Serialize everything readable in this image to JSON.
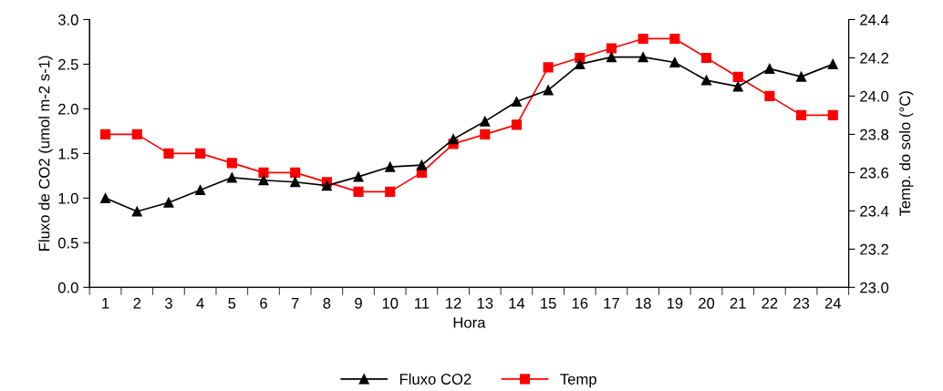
{
  "chart_data": {
    "type": "line",
    "xlabel": "Hora",
    "ylabel": "Fluxo de CO2 (umol m-2 s-1)",
    "y2label": "Temp. do solo (°C)",
    "categories": [
      "1",
      "2",
      "3",
      "4",
      "5",
      "6",
      "7",
      "8",
      "9",
      "10",
      "11",
      "12",
      "13",
      "14",
      "15",
      "16",
      "17",
      "18",
      "19",
      "20",
      "21",
      "22",
      "23",
      "24"
    ],
    "series": [
      {
        "name": "Fluxo CO2",
        "color": "#000000",
        "marker": "triangle",
        "values": [
          1.0,
          0.85,
          0.95,
          1.09,
          1.23,
          1.2,
          1.18,
          1.14,
          1.24,
          1.35,
          1.37,
          1.66,
          1.86,
          2.08,
          2.21,
          2.5,
          2.58,
          2.58,
          2.52,
          2.32,
          2.25,
          2.45,
          2.36,
          2.5
        ]
      },
      {
        "name": "Temp",
        "color": "#ff0000",
        "marker": "square",
        "axis": "y2",
        "values": [
          23.8,
          23.8,
          23.7,
          23.7,
          23.65,
          23.6,
          23.6,
          23.55,
          23.5,
          23.5,
          23.6,
          23.75,
          23.8,
          23.85,
          24.15,
          24.2,
          24.25,
          24.3,
          24.3,
          24.2,
          24.1,
          24.0,
          23.9,
          23.9
        ]
      }
    ],
    "ylim": [
      0,
      3
    ],
    "yticks": [
      {
        "value": 0,
        "label": "0.0"
      },
      {
        "value": 0.5,
        "label": "0.5"
      },
      {
        "value": 1,
        "label": "1.0"
      },
      {
        "value": 1.5,
        "label": "1.5"
      },
      {
        "value": 2,
        "label": "2.0"
      },
      {
        "value": 2.5,
        "label": "2.5"
      },
      {
        "value": 3,
        "label": "3.0"
      }
    ],
    "y2lim": [
      23,
      24.4
    ],
    "y2ticks": [
      {
        "value": 23,
        "label": "23.0"
      },
      {
        "value": 23.2,
        "label": "23.2"
      },
      {
        "value": 23.4,
        "label": "23.4"
      },
      {
        "value": 23.6,
        "label": "23.6"
      },
      {
        "value": 23.8,
        "label": "23.8"
      },
      {
        "value": 24,
        "label": "24.0"
      },
      {
        "value": 24.2,
        "label": "24.2"
      },
      {
        "value": 24.4,
        "label": "24.4"
      }
    ],
    "grid": false,
    "legend": "bottom",
    "line_style": "solid"
  }
}
